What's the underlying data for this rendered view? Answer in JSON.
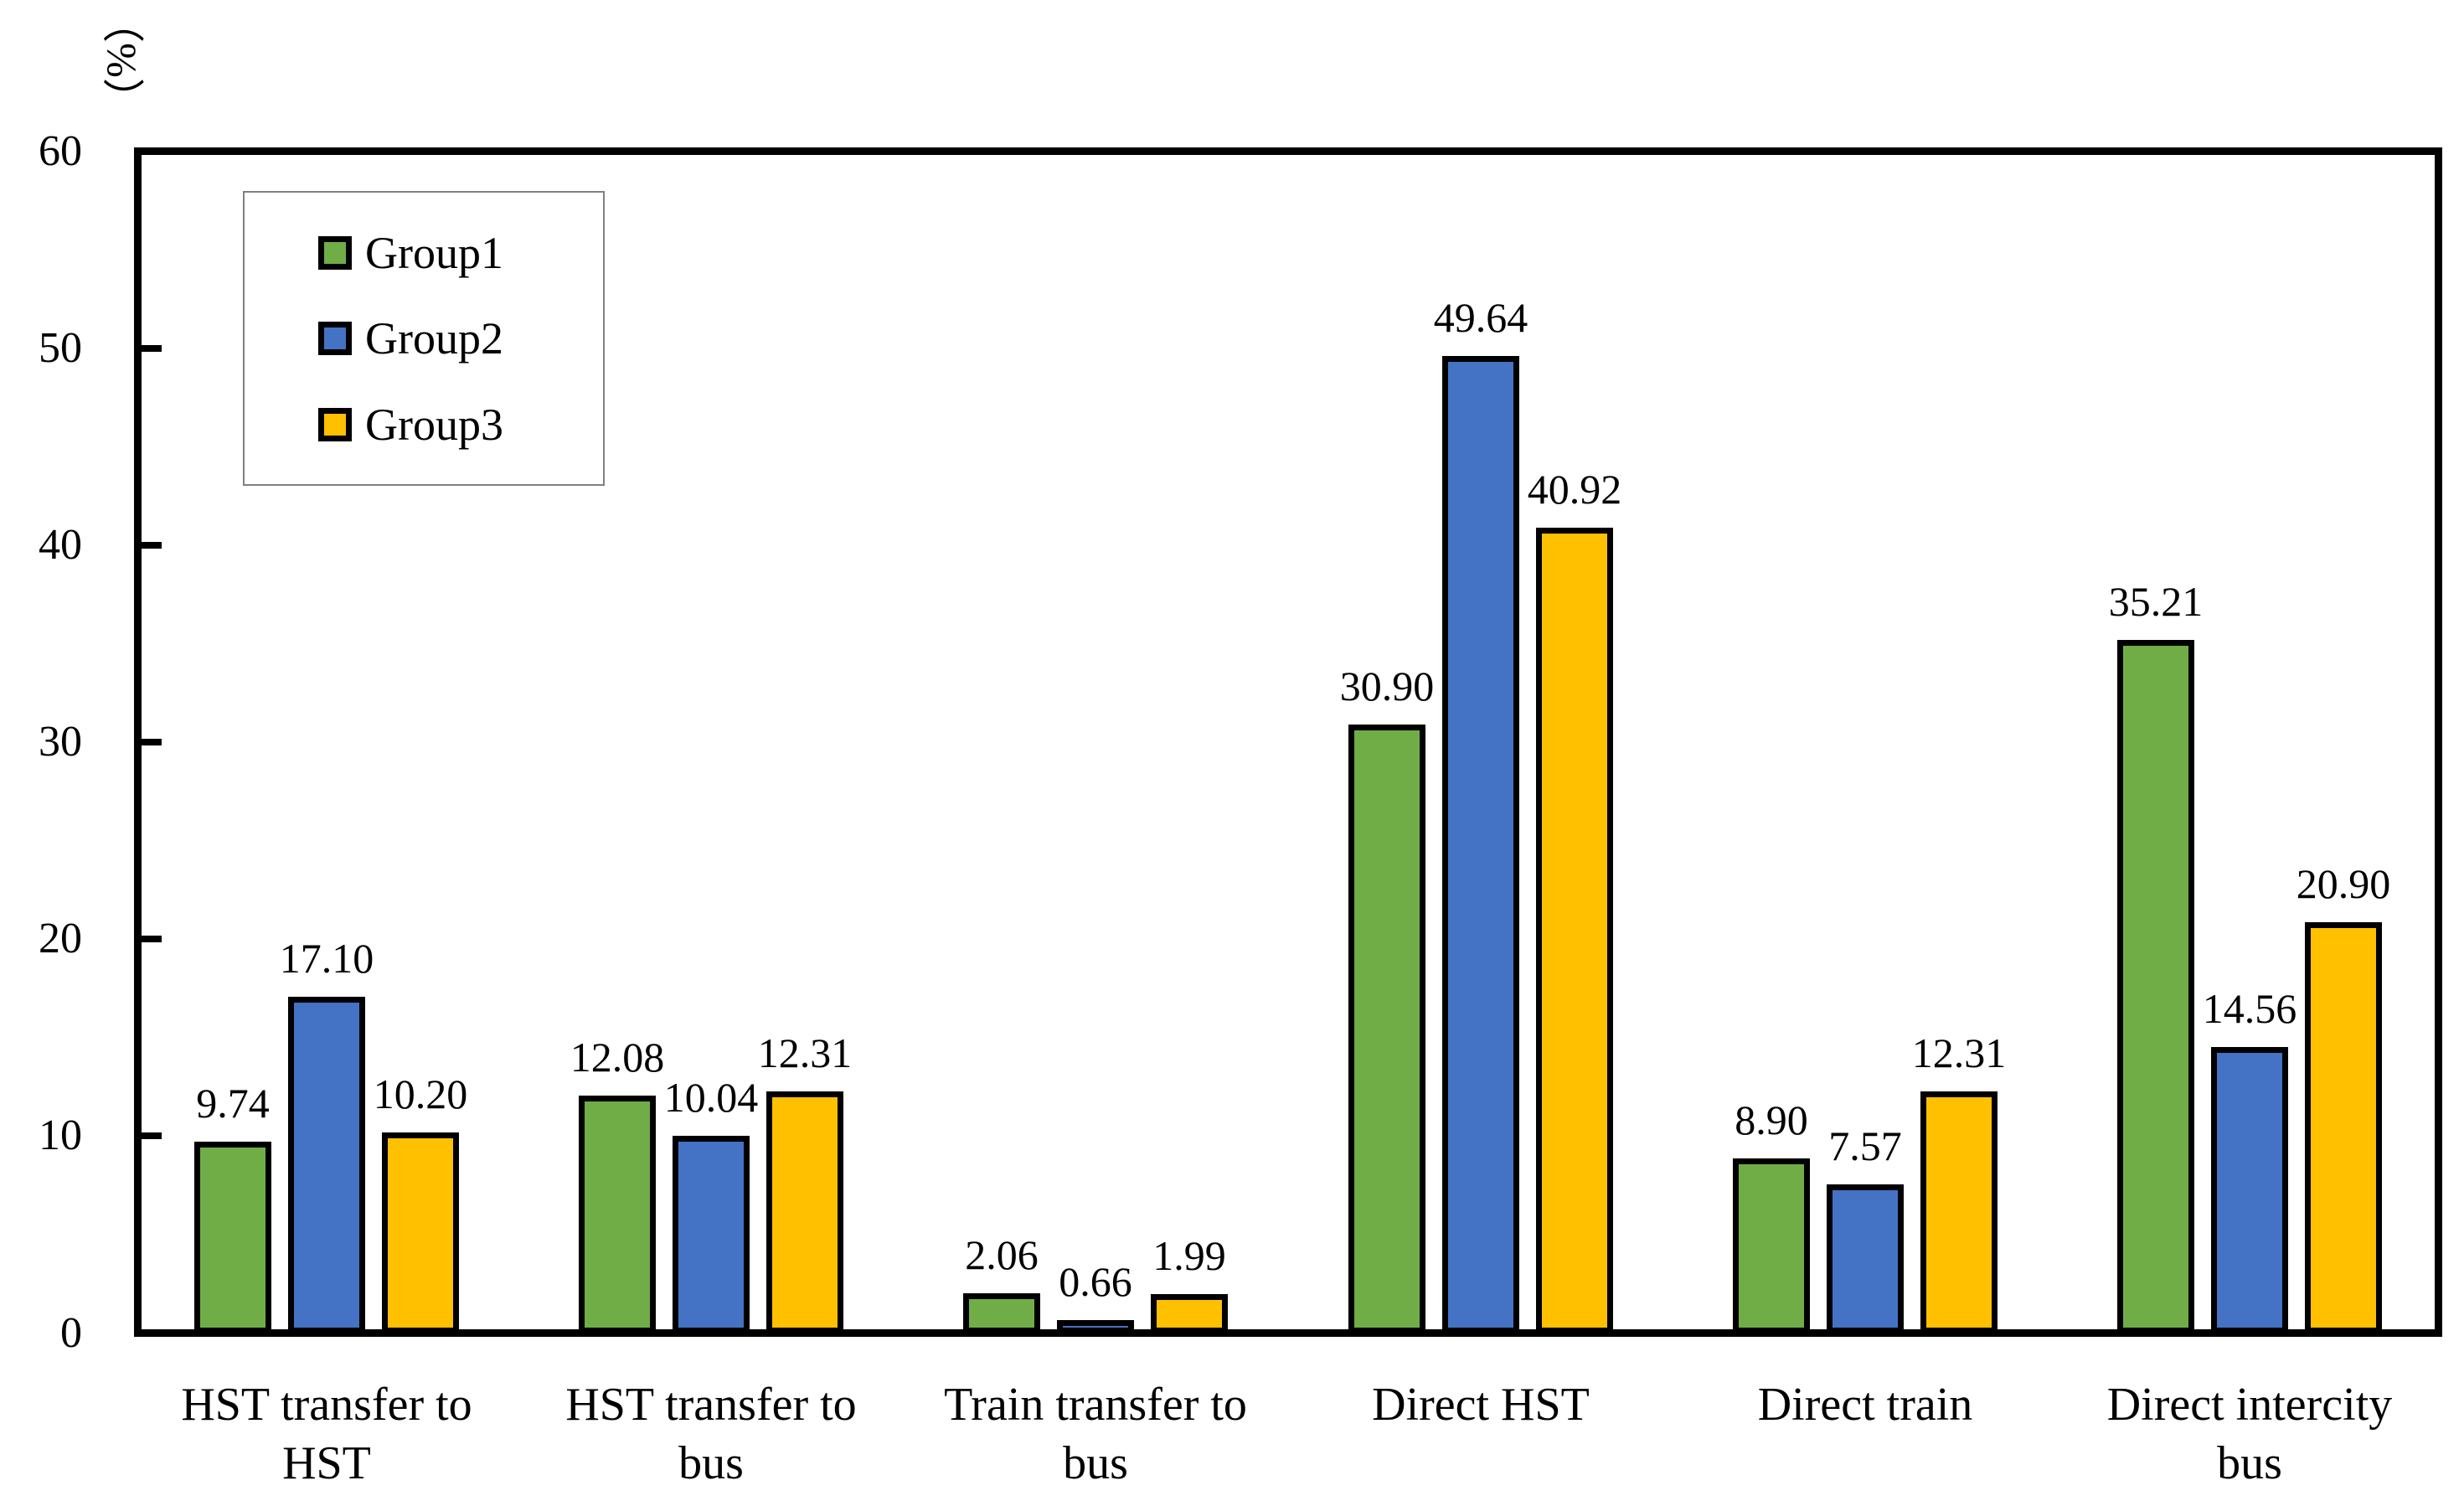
{
  "chart_data": {
    "type": "bar",
    "title": "",
    "ylabel": "（%）",
    "xlabel": "",
    "ylim": [
      0,
      60
    ],
    "yticks": [
      0,
      10,
      20,
      30,
      40,
      50,
      60
    ],
    "grid": false,
    "legend_position": "top-left",
    "value_labels": {
      "show": true,
      "decimals": 2
    },
    "categories": [
      "HST transfer to\nHST",
      "HST transfer to\nbus",
      "Train transfer to\nbus",
      "Direct HST",
      "Direct train",
      "Direct intercity\nbus"
    ],
    "series": [
      {
        "name": "Group1",
        "color": "#70AD47",
        "values": [
          9.74,
          12.08,
          2.06,
          30.9,
          8.9,
          35.21
        ]
      },
      {
        "name": "Group2",
        "color": "#4472C4",
        "values": [
          17.1,
          10.04,
          0.66,
          49.64,
          7.57,
          14.56
        ]
      },
      {
        "name": "Group3",
        "color": "#FFC000",
        "values": [
          10.2,
          12.31,
          1.99,
          40.92,
          12.31,
          20.9
        ]
      }
    ],
    "colors": {
      "bar_border": "#000000",
      "axis": "#000000",
      "legend_border": "#808080",
      "background": "#FFFFFF",
      "text": "#000000"
    }
  }
}
